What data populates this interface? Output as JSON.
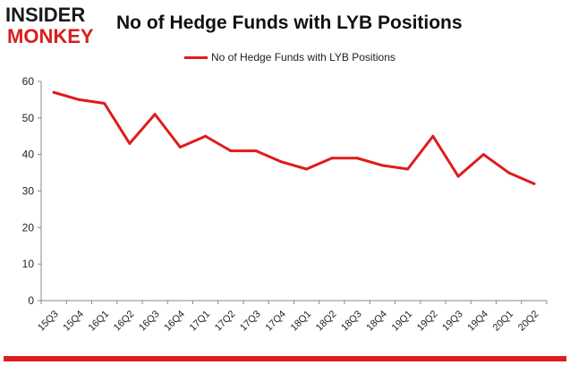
{
  "logo": {
    "line1": "INSIDER",
    "line2": "MONKEY"
  },
  "chart_data": {
    "type": "line",
    "title": "No of Hedge Funds with LYB Positions",
    "xlabel": "",
    "ylabel": "",
    "categories": [
      "15Q3",
      "15Q4",
      "16Q1",
      "16Q2",
      "16Q3",
      "16Q4",
      "17Q1",
      "17Q2",
      "17Q3",
      "17Q4",
      "18Q1",
      "18Q2",
      "18Q3",
      "18Q4",
      "19Q1",
      "19Q2",
      "19Q3",
      "19Q4",
      "20Q1",
      "20Q2"
    ],
    "series": [
      {
        "name": "No of Hedge Funds with LYB Positions",
        "color": "#e01b1b",
        "values": [
          57,
          55,
          54,
          43,
          51,
          42,
          45,
          41,
          41,
          38,
          36,
          39,
          39,
          37,
          36,
          45,
          34,
          40,
          35,
          32
        ]
      }
    ],
    "ylim": [
      0,
      60
    ],
    "yticks": [
      0,
      10,
      20,
      30,
      40,
      50,
      60
    ],
    "grid": false,
    "legend": "top-center"
  }
}
